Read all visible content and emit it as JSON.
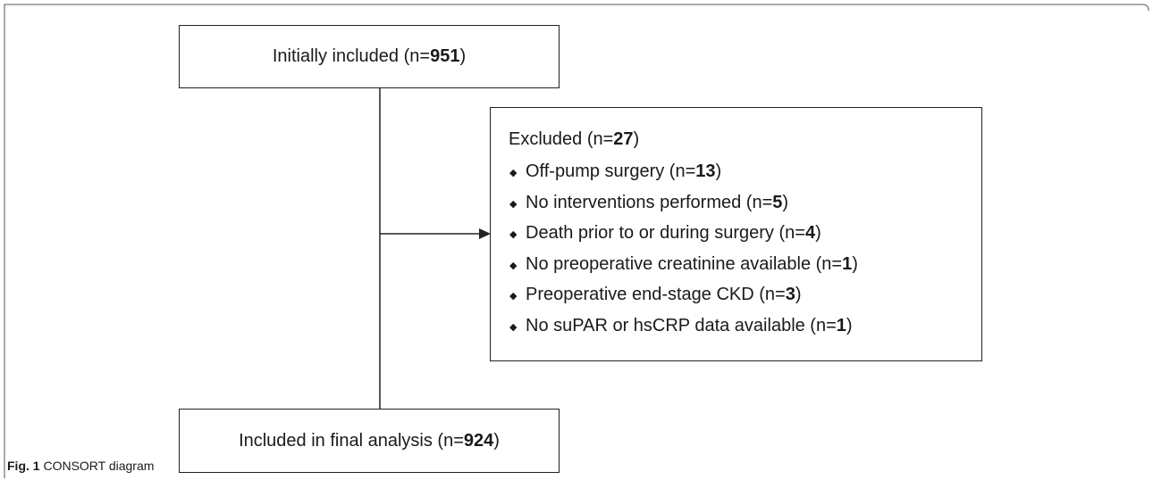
{
  "diagram": {
    "initial": {
      "text": "Initially included (n=",
      "n": 951,
      "close": ")"
    },
    "excluded": {
      "heading": {
        "text": "Excluded (n=",
        "n": 27,
        "close": ")"
      },
      "reasons": [
        {
          "text": "Off-pump surgery (n=",
          "n": 13,
          "close": ")"
        },
        {
          "text": "No interventions performed (n=",
          "n": 5,
          "close": ")"
        },
        {
          "text": "Death prior to or during surgery (n=",
          "n": 4,
          "close": ")"
        },
        {
          "text": "No preoperative creatinine available (n=",
          "n": 1,
          "close": ")"
        },
        {
          "text": "Preoperative end-stage CKD (n=",
          "n": 3,
          "close": ")"
        },
        {
          "text": "No suPAR or hsCRP data available (n=",
          "n": 1,
          "close": ")"
        }
      ]
    },
    "final": {
      "text": "Included in final analysis (n=",
      "n": 924,
      "close": ")"
    }
  },
  "caption": {
    "label": "Fig. 1",
    "text": "CONSORT diagram"
  }
}
